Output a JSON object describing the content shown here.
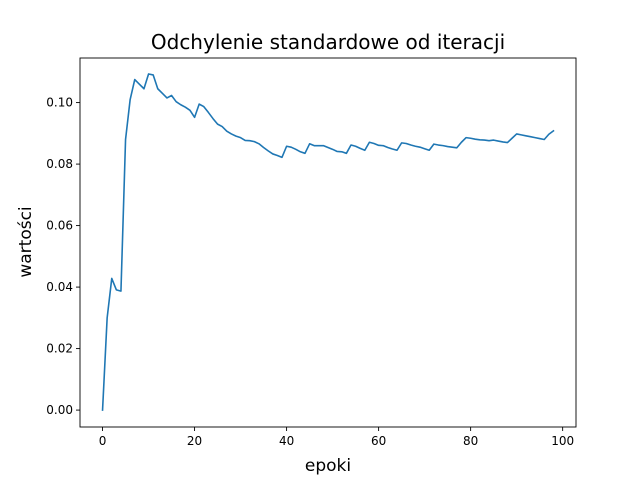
{
  "chart_data": {
    "type": "line",
    "title": "Odchylenie standardowe od iteracji",
    "xlabel": "epoki",
    "ylabel": "wartości",
    "xlim": [
      -4.9,
      102.9
    ],
    "ylim": [
      -0.0055,
      0.1145
    ],
    "xticks": [
      0,
      20,
      40,
      60,
      80,
      100
    ],
    "xtick_labels": [
      "0",
      "20",
      "40",
      "60",
      "80",
      "100"
    ],
    "yticks": [
      0.0,
      0.02,
      0.04,
      0.06,
      0.08,
      0.1
    ],
    "ytick_labels": [
      "0.00",
      "0.02",
      "0.04",
      "0.06",
      "0.08",
      "0.10"
    ],
    "grid": false,
    "line_color": "#1f77b4",
    "series": [
      {
        "x": [
          0,
          1,
          2,
          3,
          4,
          5,
          6,
          7,
          8,
          9,
          10,
          11,
          12,
          13,
          14,
          15,
          16,
          17,
          18,
          19,
          20,
          21,
          22,
          23,
          24,
          25,
          26,
          27,
          28,
          29,
          30,
          31,
          32,
          33,
          34,
          35,
          36,
          37,
          38,
          39,
          40,
          41,
          42,
          43,
          44,
          45,
          46,
          47,
          48,
          49,
          50,
          51,
          52,
          53,
          54,
          55,
          56,
          57,
          58,
          59,
          60,
          61,
          62,
          63,
          64,
          65,
          66,
          67,
          68,
          69,
          70,
          71,
          72,
          73,
          74,
          75,
          76,
          77,
          78,
          79,
          80,
          81,
          82,
          83,
          84,
          85,
          86,
          87,
          88,
          89,
          90,
          91,
          92,
          93,
          94,
          95,
          96,
          97,
          98
        ],
        "values": [
          0.0,
          0.03,
          0.0428,
          0.0391,
          0.0387,
          0.088,
          0.101,
          0.1075,
          0.106,
          0.1045,
          0.1093,
          0.109,
          0.1045,
          0.103,
          0.1015,
          0.1023,
          0.1003,
          0.0993,
          0.0985,
          0.0975,
          0.0952,
          0.0995,
          0.0987,
          0.0968,
          0.0948,
          0.093,
          0.0922,
          0.0907,
          0.0898,
          0.0891,
          0.0886,
          0.0877,
          0.0876,
          0.0873,
          0.0866,
          0.0854,
          0.0843,
          0.0833,
          0.0828,
          0.0822,
          0.0858,
          0.0855,
          0.0848,
          0.084,
          0.0835,
          0.0866,
          0.086,
          0.086,
          0.086,
          0.0854,
          0.0848,
          0.0841,
          0.084,
          0.0835,
          0.0862,
          0.0858,
          0.0851,
          0.0845,
          0.0871,
          0.0867,
          0.0861,
          0.086,
          0.0854,
          0.0849,
          0.0845,
          0.0869,
          0.0867,
          0.0862,
          0.0858,
          0.0855,
          0.085,
          0.0845,
          0.0865,
          0.0862,
          0.086,
          0.0857,
          0.0855,
          0.0853,
          0.0871,
          0.0886,
          0.0884,
          0.0881,
          0.0879,
          0.0878,
          0.0876,
          0.0878,
          0.0875,
          0.0872,
          0.087,
          0.0884,
          0.0898,
          0.0895,
          0.0892,
          0.0889,
          0.0886,
          0.0883,
          0.088,
          0.0897,
          0.0908
        ]
      }
    ]
  }
}
